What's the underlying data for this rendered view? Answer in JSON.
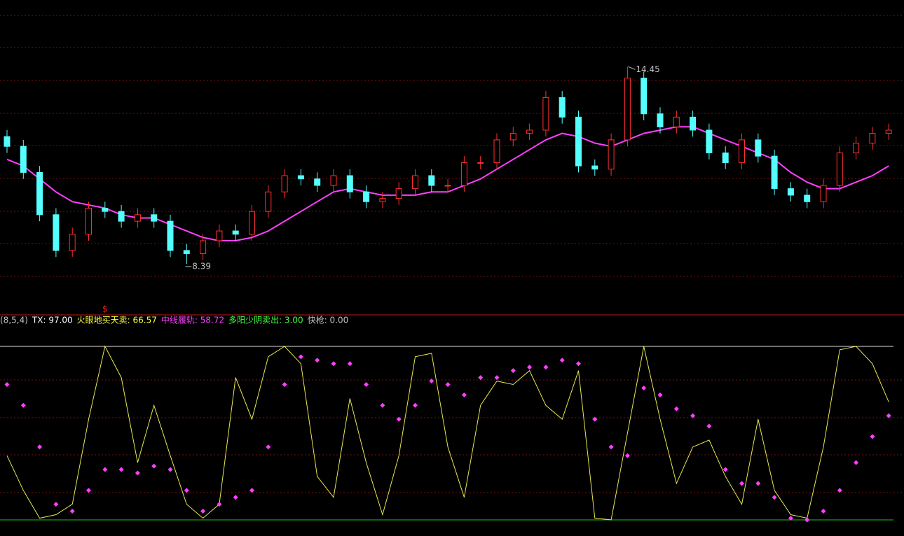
{
  "chart_data": [
    {
      "type": "candlestick",
      "ylim": [
        6.82,
        16.5
      ],
      "up_color": "#ff3030",
      "down_color": "#54ffff",
      "open": [
        12.3,
        12.0,
        11.2,
        9.9,
        8.8,
        9.3,
        10.1,
        10.0,
        9.7,
        9.9,
        9.7,
        8.8,
        8.7,
        9.1,
        9.4,
        9.3,
        10.0,
        10.6,
        11.1,
        11.0,
        10.8,
        11.1,
        10.6,
        10.3,
        10.4,
        10.7,
        11.1,
        10.8,
        10.8,
        11.5,
        11.5,
        12.2,
        12.4,
        12.5,
        13.5,
        12.9,
        11.4,
        11.3,
        12.2,
        14.1,
        13.0,
        12.6,
        12.9,
        12.5,
        11.8,
        11.5,
        12.2,
        11.7,
        10.7,
        10.5,
        10.3,
        10.8,
        11.8,
        12.1,
        12.4
      ],
      "high": [
        12.5,
        12.2,
        11.4,
        10.1,
        9.5,
        10.3,
        10.3,
        10.2,
        10.1,
        10.1,
        9.9,
        9.0,
        9.3,
        9.6,
        9.6,
        10.2,
        10.8,
        11.3,
        11.3,
        11.2,
        11.3,
        11.3,
        10.8,
        10.6,
        10.9,
        11.3,
        11.3,
        11.0,
        11.7,
        11.7,
        12.4,
        12.6,
        12.7,
        13.7,
        13.7,
        13.1,
        11.6,
        12.4,
        14.45,
        14.3,
        13.2,
        13.1,
        13.1,
        12.7,
        12.0,
        12.4,
        12.4,
        11.9,
        10.9,
        10.7,
        11.0,
        12.0,
        12.3,
        12.6,
        12.7
      ],
      "low": [
        11.8,
        11.0,
        9.7,
        8.6,
        8.6,
        9.1,
        9.8,
        9.5,
        9.5,
        9.5,
        8.6,
        8.39,
        8.5,
        8.9,
        9.1,
        9.1,
        9.8,
        10.4,
        10.8,
        10.6,
        10.6,
        10.4,
        10.1,
        10.1,
        10.2,
        10.5,
        10.6,
        10.6,
        10.6,
        11.3,
        11.3,
        12.0,
        12.2,
        12.3,
        12.7,
        11.2,
        11.1,
        11.1,
        12.0,
        12.8,
        12.4,
        12.4,
        12.3,
        11.6,
        11.3,
        11.3,
        11.5,
        10.5,
        10.3,
        10.1,
        10.1,
        10.6,
        11.6,
        11.9,
        12.2
      ],
      "close": [
        12.0,
        11.2,
        9.9,
        8.8,
        9.3,
        10.1,
        10.0,
        9.7,
        9.9,
        9.7,
        8.8,
        8.7,
        9.1,
        9.4,
        9.3,
        10.0,
        10.6,
        11.1,
        11.0,
        10.8,
        11.1,
        10.6,
        10.3,
        10.4,
        10.7,
        11.1,
        10.8,
        10.8,
        11.5,
        11.5,
        12.2,
        12.4,
        12.5,
        13.5,
        12.9,
        11.4,
        11.3,
        12.2,
        14.1,
        13.0,
        12.6,
        12.9,
        12.5,
        11.8,
        11.5,
        12.2,
        11.7,
        10.7,
        10.5,
        10.3,
        10.8,
        11.8,
        12.1,
        12.4,
        12.5
      ],
      "lines": [
        {
          "color": "#ff40ff",
          "values": [
            11.6,
            11.4,
            11.0,
            10.6,
            10.3,
            10.2,
            10.1,
            9.9,
            9.8,
            9.8,
            9.6,
            9.4,
            9.2,
            9.1,
            9.1,
            9.2,
            9.4,
            9.7,
            10.0,
            10.3,
            10.6,
            10.7,
            10.6,
            10.5,
            10.5,
            10.5,
            10.6,
            10.6,
            10.8,
            11.0,
            11.3,
            11.6,
            11.9,
            12.2,
            12.4,
            12.3,
            12.1,
            12.0,
            12.2,
            12.4,
            12.5,
            12.6,
            12.6,
            12.4,
            12.2,
            12.0,
            11.8,
            11.6,
            11.2,
            10.9,
            10.7,
            10.7,
            10.9,
            11.1,
            11.4
          ]
        }
      ],
      "high_label": "14.45",
      "low_label": "8.39"
    },
    {
      "type": "line",
      "ylim": [
        -9.3,
        114.1
      ],
      "reference_lines": [
        {
          "value": 100,
          "color": "#e0e0e0"
        },
        {
          "value": 0,
          "color": "#20c020"
        }
      ],
      "legend": [
        {
          "text": "(8,5,4)",
          "color": "#c0c0c0"
        },
        {
          "text": "TX: 97.00",
          "color": "#ffffff"
        },
        {
          "text": "火眼地买天卖: 66.57",
          "color": "#ffff40"
        },
        {
          "text": "中线履轨: 58.72",
          "color": "#ff40ff"
        },
        {
          "text": "多阳少阴卖出: 3.00",
          "color": "#40ff40"
        },
        {
          "text": "快枪: 0.00",
          "color": "#c0c0c0"
        }
      ],
      "series": [
        {
          "color": "#e8e850",
          "marker": "none",
          "values": [
            37,
            17,
            1,
            3,
            9,
            58,
            100,
            82,
            33,
            66,
            37,
            9,
            1,
            9,
            82,
            58,
            94,
            100,
            90,
            25,
            13,
            70,
            33,
            3,
            37,
            94,
            96,
            42,
            13,
            66,
            80,
            78,
            86,
            66,
            58,
            86,
            1,
            0,
            50,
            100,
            58,
            21,
            42,
            46,
            25,
            9,
            58,
            17,
            3,
            1,
            42,
            98,
            100,
            90,
            68
          ]
        },
        {
          "color": "#ff40ff",
          "marker": "diamond",
          "values": [
            78,
            66,
            42,
            9,
            5,
            17,
            29,
            29,
            27,
            31,
            29,
            17,
            5,
            9,
            13,
            17,
            42,
            78,
            94,
            92,
            90,
            90,
            78,
            66,
            58,
            66,
            80,
            78,
            72,
            82,
            82,
            86,
            88,
            88,
            92,
            90,
            58,
            42,
            37,
            76,
            72,
            64,
            60,
            54,
            29,
            21,
            21,
            13,
            1,
            0,
            5,
            17,
            33,
            48,
            60
          ]
        }
      ]
    }
  ]
}
